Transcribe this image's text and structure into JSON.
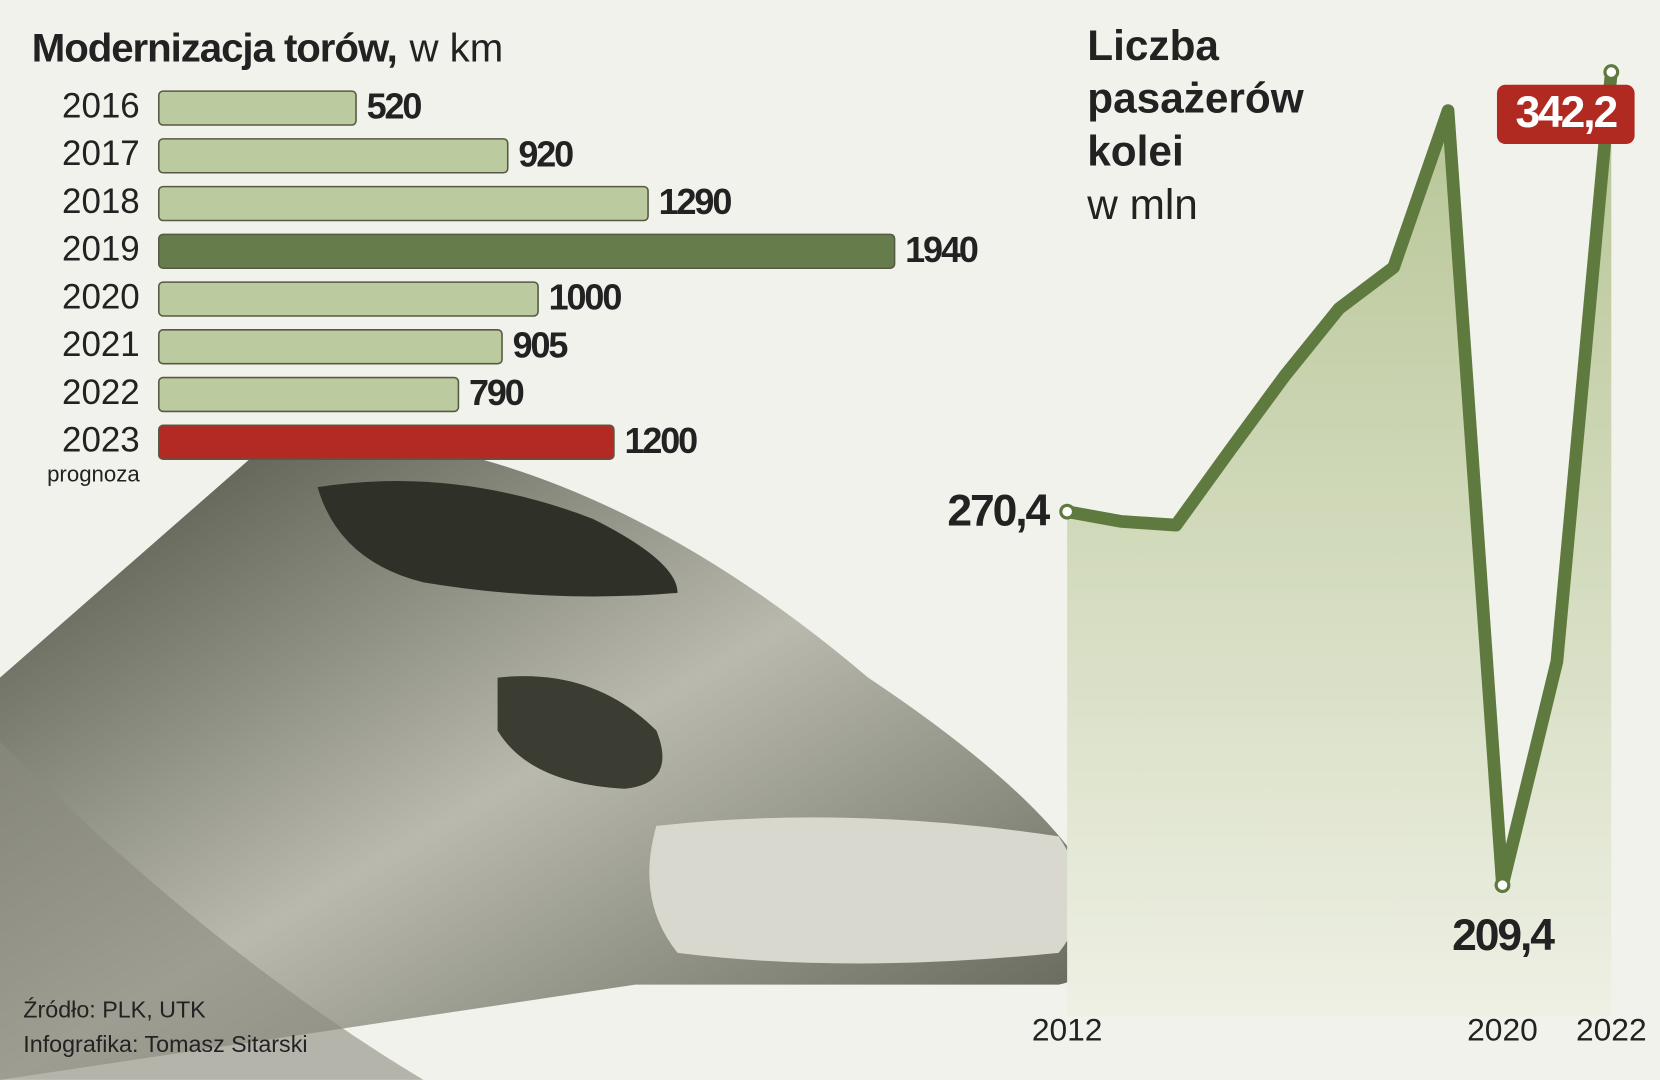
{
  "chart_data": [
    {
      "type": "bar",
      "title": "Modernizacja torów,",
      "subtitle": "w km",
      "categories": [
        "2016",
        "2017",
        "2018",
        "2019",
        "2020",
        "2021",
        "2022",
        "2023"
      ],
      "values": [
        520,
        920,
        1290,
        1940,
        1000,
        905,
        790,
        1200
      ],
      "colors": [
        "#bccb9f",
        "#bccb9f",
        "#bccb9f",
        "#667d4b",
        "#bccb9f",
        "#bccb9f",
        "#bccb9f",
        "#b22a23"
      ],
      "annotation": "prognoza"
    },
    {
      "type": "area",
      "title": "Liczba pasażerów kolei",
      "subtitle": "w mln",
      "x": [
        2012,
        2013,
        2014,
        2015,
        2016,
        2017,
        2018,
        2019,
        2020,
        2021,
        2022
      ],
      "values": [
        270.4,
        268.8,
        268.2,
        280.5,
        292.6,
        303.6,
        310.3,
        335.9,
        209.4,
        245.9,
        342.2
      ],
      "value_labels": [
        "270,4",
        null,
        null,
        null,
        null,
        null,
        null,
        null,
        "209,4",
        null,
        "342,2"
      ],
      "xticks": [
        2012,
        2020,
        2022
      ],
      "color": "#5f7a3f",
      "highlight_color": "#b02a22"
    },
    {
      "type": "source",
      "lines": [
        "Źródło: PLK, UTK",
        "Infografika: Tomasz Sitarski"
      ]
    }
  ]
}
